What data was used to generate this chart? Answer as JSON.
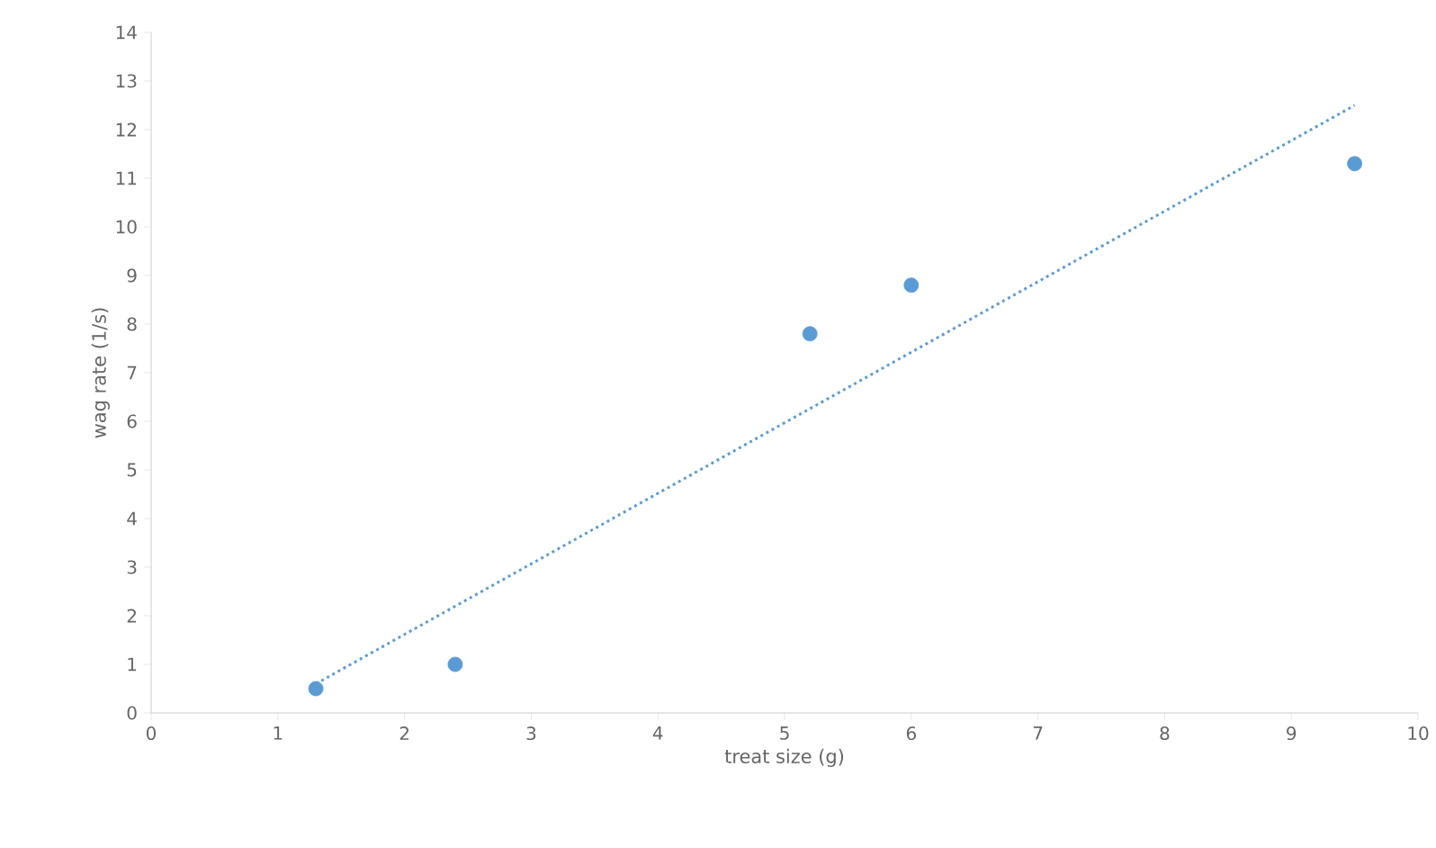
{
  "chart_data": {
    "type": "scatter",
    "xlabel": "treat size (g)",
    "ylabel": "wag rate (1/s)",
    "xlim": [
      0,
      10
    ],
    "ylim": [
      0,
      14
    ],
    "xticks": [
      0,
      1,
      2,
      3,
      4,
      5,
      6,
      7,
      8,
      9,
      10
    ],
    "yticks": [
      0,
      1,
      2,
      3,
      4,
      5,
      6,
      7,
      8,
      9,
      10,
      11,
      12,
      13,
      14
    ],
    "series": [
      {
        "color": "#5b9bd5",
        "marker": "circle",
        "x": [
          1.3,
          2.4,
          5.2,
          6.0,
          9.5
        ],
        "values": [
          0.5,
          1.0,
          7.8,
          8.8,
          11.3
        ]
      },
      {
        "type": "line",
        "color": "#5b9bd5",
        "line_style": "dotted",
        "marker": "none",
        "x": [
          1.3,
          9.5
        ],
        "values": [
          0.6,
          12.5
        ]
      }
    ]
  }
}
